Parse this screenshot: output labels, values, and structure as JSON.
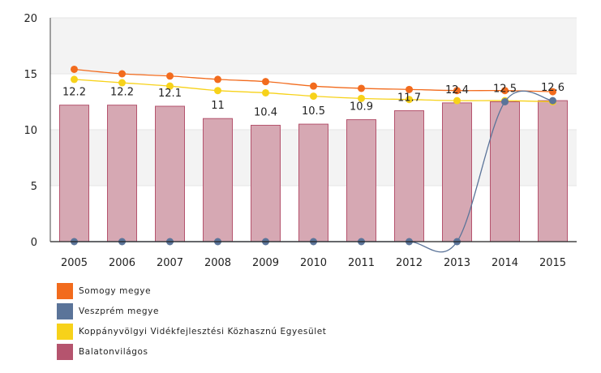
{
  "chart_data": {
    "type": "bar",
    "categories": [
      "2005",
      "2006",
      "2007",
      "2008",
      "2009",
      "2010",
      "2011",
      "2012",
      "2013",
      "2014",
      "2015"
    ],
    "ylim": [
      0,
      20
    ],
    "yticks": [
      0,
      5,
      10,
      15,
      20
    ],
    "grid": true,
    "legend_position": "bottom-left",
    "bar_series": {
      "name": "Balatonvilágos",
      "color": "#b5546e",
      "values": [
        12.2,
        12.2,
        12.1,
        11,
        10.4,
        10.5,
        10.9,
        11.7,
        12.4,
        12.5,
        12.6
      ],
      "data_labels": [
        "12.2",
        "12.2",
        "12.1",
        "11",
        "10.4",
        "10.5",
        "10.9",
        "11.7",
        "12.4",
        "12.5",
        "12.6"
      ]
    },
    "line_series": [
      {
        "name": "Somogy megye",
        "color": "#f26b1d",
        "values": [
          15.4,
          15.0,
          14.8,
          14.5,
          14.3,
          13.9,
          13.7,
          13.6,
          13.5,
          13.5,
          13.4
        ]
      },
      {
        "name": "Koppányvölgyi Vidékfejlesztési Közhasznú Egyesület",
        "color": "#f7d21a",
        "values": [
          14.5,
          14.2,
          13.9,
          13.5,
          13.3,
          13.0,
          12.8,
          12.7,
          12.6,
          12.6,
          12.5
        ]
      },
      {
        "name": "Veszprém megye",
        "color": "#5b7499",
        "values": [
          0,
          0,
          0,
          0,
          0,
          0,
          0,
          0,
          0,
          12.5,
          12.6
        ]
      }
    ]
  },
  "legend": [
    {
      "label": "Somogy megye",
      "color": "#f26b1d"
    },
    {
      "label": "Veszprém megye",
      "color": "#5b7499"
    },
    {
      "label": "Koppányvölgyi Vidékfejlesztési Közhasznú Egyesület",
      "color": "#f7d21a"
    },
    {
      "label": "Balatonvilágos",
      "color": "#b5546e"
    }
  ]
}
